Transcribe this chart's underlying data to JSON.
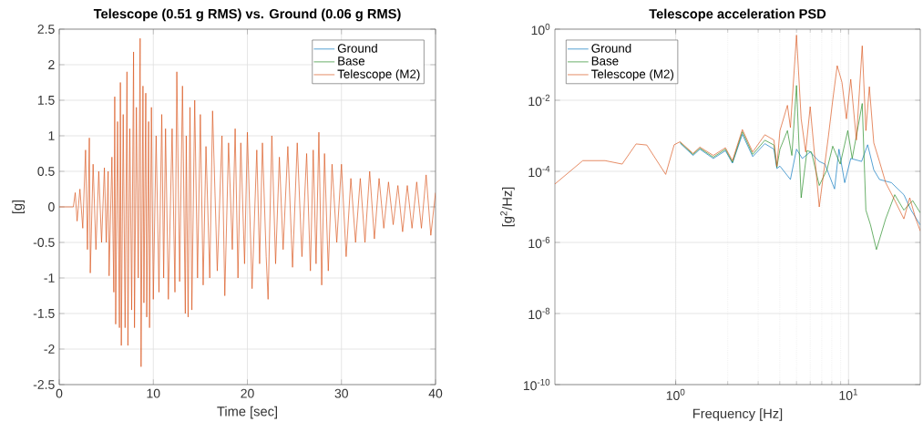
{
  "chart_data": [
    {
      "type": "line",
      "title": "Telescope (0.51 g RMS) vs. Ground (0.06 g RMS)",
      "xlabel": "Time [sec]",
      "ylabel": "[g]",
      "xlim": [
        0,
        40
      ],
      "ylim": [
        -2.5,
        2.5
      ],
      "xticks": [
        0,
        10,
        20,
        30,
        40
      ],
      "yticks": [
        -2.5,
        -2,
        -1.5,
        -1,
        -0.5,
        0,
        0.5,
        1,
        1.5,
        2,
        2.5
      ],
      "grid": true,
      "legend": "top right",
      "series": [
        {
          "name": "Ground",
          "color": "#0072bd"
        },
        {
          "name": "Base",
          "color": "#1f8a1f"
        },
        {
          "name": "Telescope (M2)",
          "color": "#d95319",
          "x": [
            0,
            1.5,
            1.7,
            1.9,
            2.2,
            2.5,
            2.8,
            3.0,
            3.2,
            3.3,
            3.6,
            3.9,
            4.2,
            4.5,
            4.8,
            5.0,
            5.2,
            5.3,
            5.6,
            5.8,
            5.9,
            6.0,
            6.2,
            6.4,
            6.5,
            6.6,
            6.8,
            7.0,
            7.2,
            7.3,
            7.5,
            7.7,
            7.9,
            8.0,
            8.2,
            8.4,
            8.6,
            8.7,
            8.9,
            9.0,
            9.2,
            9.3,
            9.5,
            9.6,
            9.8,
            10.0,
            10.3,
            10.6,
            10.9,
            11.1,
            11.3,
            11.6,
            12.0,
            12.3,
            12.5,
            12.8,
            13.1,
            13.4,
            13.5,
            13.7,
            13.9,
            14.1,
            14.4,
            14.7,
            15.0,
            15.3,
            15.6,
            16.0,
            16.3,
            16.8,
            17.3,
            17.6,
            18.0,
            18.4,
            18.7,
            19.0,
            19.3,
            19.7,
            20.0,
            20.5,
            21.0,
            21.3,
            21.6,
            22.0,
            22.2,
            22.6,
            23.0,
            23.4,
            23.8,
            24.3,
            24.8,
            25.3,
            25.8,
            26.3,
            26.7,
            27.0,
            27.3,
            27.6,
            27.9,
            28.2,
            28.6,
            29.0,
            29.5,
            30.0,
            30.5,
            31.0,
            31.5,
            32.0,
            32.5,
            33.0,
            33.5,
            34.0,
            34.5,
            35.0,
            35.5,
            36.0,
            36.5,
            37.0,
            37.5,
            38.0,
            38.5,
            39.0,
            39.5,
            40.0
          ],
          "values": [
            0,
            0,
            0.2,
            -0.2,
            0.25,
            -0.3,
            0.8,
            -0.6,
            0.97,
            -0.93,
            0.6,
            -0.6,
            0.5,
            -0.5,
            0.55,
            -0.5,
            0.5,
            -0.97,
            0.7,
            -1.2,
            1.55,
            -1.65,
            1.2,
            -1.7,
            1.75,
            -1.95,
            1.3,
            -1.7,
            1.9,
            -1.95,
            1.1,
            -1.45,
            2.18,
            -1.7,
            1.4,
            -1.0,
            2.37,
            -2.25,
            1.7,
            -1.35,
            1.6,
            -1.55,
            1.2,
            -1.7,
            1.4,
            -1.3,
            1.0,
            -1.2,
            1.3,
            -1.0,
            1.1,
            -1.3,
            1.1,
            -1.2,
            1.9,
            -1.05,
            1.7,
            -1.5,
            1.0,
            -1.55,
            1.4,
            -1.45,
            1.5,
            -1.0,
            1.3,
            -1.1,
            0.85,
            -1.0,
            1.35,
            -0.9,
            1.0,
            -1.25,
            0.9,
            -0.6,
            1.1,
            -1.0,
            0.9,
            -0.8,
            1.05,
            -1.15,
            0.8,
            -0.8,
            0.9,
            -0.7,
            -1.3,
            1.0,
            -0.8,
            0.7,
            -0.6,
            0.85,
            -0.85,
            0.9,
            -0.7,
            0.75,
            -0.9,
            0.8,
            -0.8,
            1.05,
            -1.1,
            0.75,
            -0.9,
            0.6,
            -0.5,
            0.6,
            -0.7,
            0.4,
            -0.5,
            0.4,
            -0.5,
            0.5,
            -0.45,
            0.4,
            -0.3,
            0.35,
            -0.25,
            0.3,
            -0.35,
            0.3,
            -0.3,
            0.35,
            -0.3,
            0.45,
            -0.4,
            0.2
          ]
        }
      ]
    },
    {
      "type": "line",
      "title": "Telescope acceleration PSD",
      "xlabel": "Frequency [Hz]",
      "ylabel": "[g$^{2}$/Hz]",
      "log": "xy",
      "xlim": [
        0.2,
        26
      ],
      "ylim": [
        1e-10,
        1
      ],
      "xticks": [
        {
          "value": 1,
          "label": "10$^{0}$"
        },
        {
          "value": 10,
          "label": "10$^{1}$"
        }
      ],
      "yticks": [
        {
          "value": 1e-10,
          "label": "10$^{-10}$"
        },
        {
          "value": 1e-08,
          "label": "10$^{-8}$"
        },
        {
          "value": 1e-06,
          "label": "10$^{-6}$"
        },
        {
          "value": 0.0001,
          "label": "10$^{-4}$"
        },
        {
          "value": 0.01,
          "label": "10$^{-2}$"
        },
        {
          "value": 1,
          "label": "10$^{0}$"
        }
      ],
      "grid": true,
      "legend": "top left",
      "series": [
        {
          "name": "Ground",
          "color": "#0072bd",
          "x": [
            1.06,
            1.26,
            1.38,
            1.65,
            1.94,
            2.13,
            2.43,
            2.79,
            3.28,
            3.7,
            3.85,
            4.01,
            4.61,
            5.0,
            5.4,
            6.0,
            6.77,
            7.3,
            8.3,
            8.8,
            9.5,
            10.3,
            11.9,
            12.9,
            14.0,
            15.1,
            17.7,
            20.9,
            23,
            26
          ],
          "values": [
            0.00062,
            0.00028,
            0.00042,
            0.00023,
            0.00038,
            0.00017,
            0.0011,
            0.00026,
            0.0006,
            0.00042,
            0.00012,
            0.00014,
            5.9e-05,
            0.00042,
            0.00023,
            0.00035,
            0.00019,
            0.00016,
            3.2e-05,
            0.00042,
            4.8e-05,
            0.00023,
            0.00019,
            0.00056,
            0.00011,
            5.9e-05,
            4.8e-05,
            2.2e-05,
            8.1e-06,
            3.1e-06
          ]
        },
        {
          "name": "Base",
          "color": "#1f8a1f",
          "x": [
            1.06,
            1.26,
            1.38,
            1.65,
            1.94,
            2.13,
            2.43,
            2.79,
            3.28,
            3.7,
            3.85,
            4.01,
            4.43,
            4.7,
            5.0,
            5.32,
            5.75,
            6.1,
            6.77,
            7.5,
            8.1,
            8.95,
            9.9,
            10.5,
            11.4,
            12.0,
            12.6,
            13.4,
            14.5,
            16.4,
            18.5,
            20.9,
            23.5,
            26
          ],
          "values": [
            0.00065,
            0.0003,
            0.00045,
            0.00025,
            0.00042,
            0.00018,
            0.0013,
            0.0003,
            0.00075,
            0.00055,
            0.00013,
            0.00042,
            0.0014,
            0.00028,
            0.026,
            1.8e-05,
            0.00038,
            0.00035,
            4e-05,
            0.00011,
            0.00051,
            0.00016,
            0.0014,
            0.00023,
            0.002,
            0.0081,
            8.1e-06,
            3.1e-06,
            6.3e-07,
            4.6e-06,
            2.2e-05,
            8.1e-06,
            1.5e-05,
            6.8e-06
          ]
        },
        {
          "name": "Telescope (M2)",
          "color": "#d95319",
          "x": [
            0.2,
            0.29,
            0.39,
            0.49,
            0.59,
            0.68,
            0.875,
            0.98,
            1.06,
            1.26,
            1.38,
            1.65,
            1.94,
            2.13,
            2.43,
            2.79,
            3.28,
            3.7,
            3.85,
            4.01,
            4.43,
            4.61,
            5.0,
            5.32,
            5.65,
            6.0,
            6.77,
            7.64,
            8.1,
            8.6,
            9.16,
            9.72,
            10.3,
            11.1,
            12.0,
            12.6,
            13.2,
            14.0,
            15.1,
            16.4,
            18.2,
            20.9,
            22.6,
            24.5,
            26
          ],
          "values": [
            4.4e-05,
            0.0002,
            0.0002,
            0.00016,
            0.00059,
            0.00055,
            8.2e-05,
            0.00056,
            0.00068,
            0.00032,
            0.00048,
            0.00028,
            0.00046,
            0.0002,
            0.0015,
            0.00035,
            0.00107,
            0.00076,
            0.00014,
            0.0014,
            0.0072,
            0.0017,
            0.68,
            0.003,
            0.00035,
            0.0066,
            1e-05,
            0.00093,
            0.01,
            0.094,
            0.032,
            0.003,
            0.039,
            0.00076,
            0.34,
            0.0014,
            0.024,
            0.00063,
            0.00019,
            4.8e-05,
            1.8e-05,
            4.6e-06,
            1.8e-05,
            4.6e-06,
            2.1e-06
          ]
        }
      ]
    }
  ]
}
